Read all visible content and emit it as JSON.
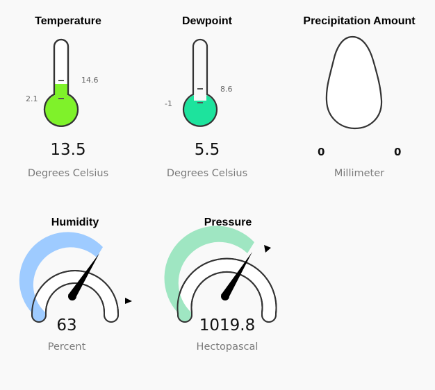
{
  "widgets": {
    "temperature": {
      "title": "Temperature",
      "value": "13.5",
      "unit": "Degrees Celsius",
      "min_label": "2.1",
      "max_label": "14.6",
      "fill_fraction": 0.42,
      "color": "#7ff22a"
    },
    "dewpoint": {
      "title": "Dewpoint",
      "value": "5.5",
      "unit": "Degrees Celsius",
      "min_label": "-1",
      "max_label": "8.6",
      "fill_fraction": 0.22,
      "color": "#1de39d"
    },
    "precipitation": {
      "title": "Precipitation Amount",
      "min_label": "0",
      "max_label": "0",
      "unit": "Millimeter",
      "fill_fraction": 0,
      "color": "#ffffff"
    },
    "humidity": {
      "title": "Humidity",
      "value": "63",
      "unit": "Percent",
      "level_percent": 63,
      "color": "#9ecbff"
    },
    "pressure": {
      "title": "Pressure",
      "value": "1019.8",
      "unit": "Hectopascal",
      "level_fraction": 0.65,
      "color": "#9fe6c2"
    }
  }
}
